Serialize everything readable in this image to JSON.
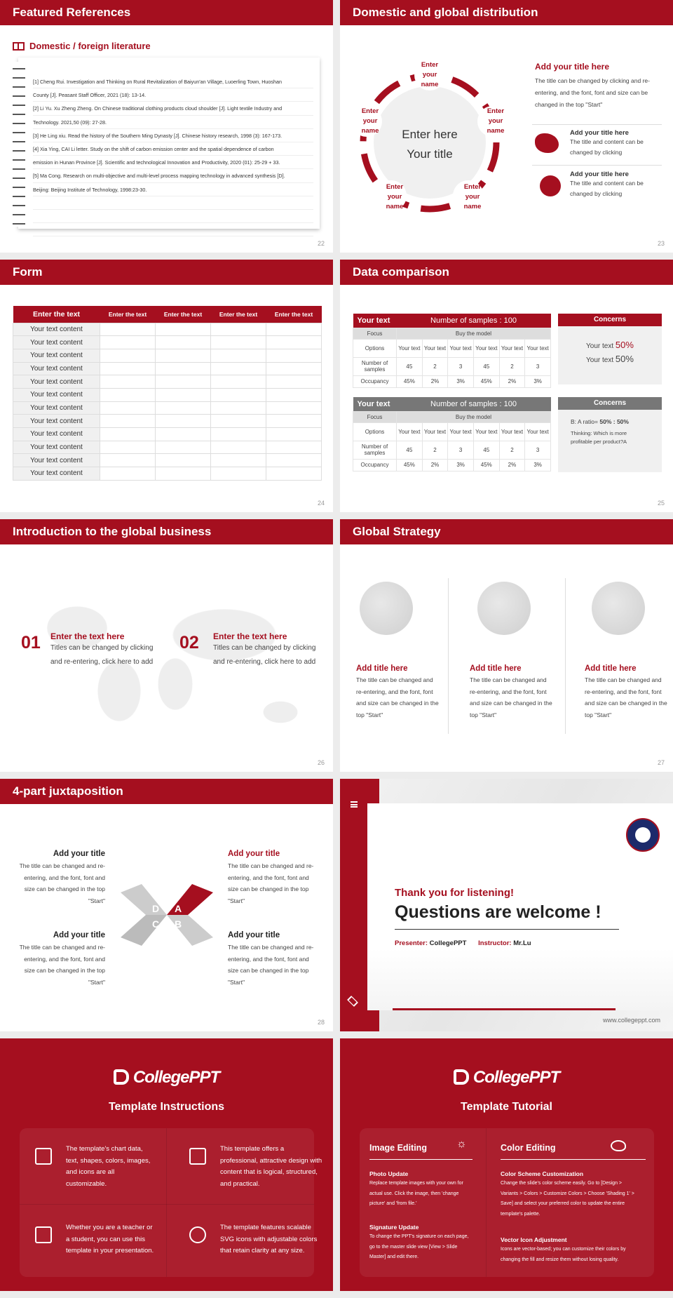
{
  "colors": {
    "accent": "#a50f1f",
    "gray": "#777777"
  },
  "s22": {
    "title": "Featured References",
    "heading": "Domestic / foreign literature",
    "icon": "book-icon",
    "page": "22",
    "lines": [
      "[1] Cheng Rui. Investigation and Thinking on Rural Revitalization of Baiyun'an Village, Luoerling Town, Huoshan",
      "County [J]. Peasant Staff Officer, 2021 (18): 13-14.",
      "[2] Li Yu. Xu Zheng Zheng. On Chinese traditional clothing products cloud shoulder [J]. Light textile Industry and",
      "Technology. 2021,50 (09): 27-28.",
      "[3] He Ling xiu. Read the history of the Southern Ming Dynasty [J]. Chinese history research, 1998 (3): 167-173.",
      "[4] Xia Ying, CAI Li letter. Study on the shift of carbon emission center and the spatial dependence of carbon",
      "emission in Hunan Province [J]. Scientific and technological Innovation and Productivity, 2020 (01): 25-29 + 33.",
      "[5] Ma Cong. Research on multi-objective and multi-level process mapping technology in advanced synthesis [D].",
      "Beijing: Beijing Institute of Technology, 1998:23-30."
    ]
  },
  "s23": {
    "title": "Domestic and global distribution",
    "page": "23",
    "center1": "Enter here",
    "center2": "Your title",
    "node": [
      "Enter",
      "your",
      "name"
    ],
    "main_title": "Add your title here",
    "main_text": "The title can be changed by clicking and re-entering, and the font, font and size can be changed in the top \"Start\"",
    "items": [
      {
        "icon": "china-map-icon",
        "title": "Add your title here",
        "text": "The title and content can be changed by clicking"
      },
      {
        "icon": "globe-icon",
        "title": "Add your title here",
        "text": "The title and content can be changed by clicking"
      }
    ]
  },
  "s24": {
    "title": "Form",
    "page": "24",
    "headers": [
      "Enter the text",
      "Enter the text",
      "Enter the text",
      "Enter the text",
      "Enter the text"
    ],
    "row_label": "Your text content"
  },
  "s25": {
    "title": "Data comparison",
    "page": "25",
    "head_left": "Your text",
    "head_right": "Number of samples : 100",
    "focus": "Focus",
    "buy": "Buy the model",
    "rows": [
      {
        "label": "Options",
        "cells": [
          "Your text",
          "Your text",
          "Your text",
          "Your text",
          "Your text",
          "Your text"
        ]
      },
      {
        "label": "Number of samples",
        "cells": [
          "45",
          "2",
          "3",
          "45",
          "2",
          "3"
        ]
      },
      {
        "label": "Occupancy",
        "cells": [
          "45%",
          "2%",
          "3%",
          "45%",
          "2%",
          "3%"
        ]
      }
    ],
    "concerns": "Concerns",
    "c1_a": "Your text",
    "c1_a_val": "50%",
    "c1_b": "Your text",
    "c1_b_val": "50%",
    "c2_ratio": "B: A ratio=",
    "c2_ratio_val": "50% : 50%",
    "c2_thinking": "Thinking: Which is more profitable per product?A"
  },
  "s26": {
    "title": "Introduction to the global business",
    "page": "26",
    "items": [
      {
        "num": "01",
        "title": "Enter the text here",
        "text": "Titles can be changed by clicking and re-entering, click here to add"
      },
      {
        "num": "02",
        "title": "Enter the text here",
        "text": "Titles can be changed by clicking and re-entering, click here to add"
      }
    ]
  },
  "s27": {
    "title": "Global Strategy",
    "page": "27",
    "cols": [
      {
        "title": "Add title here",
        "text": "The title can be changed and re-entering, and the font, font and size can be changed in the top \"Start\""
      },
      {
        "title": "Add title here",
        "text": "The title can be changed and re-entering, and the font, font and size can be changed in the top \"Start\""
      },
      {
        "title": "Add title here",
        "text": "The title can be changed and re-entering, and the font, font and size can be changed in the top \"Start\""
      }
    ]
  },
  "s28": {
    "title": "4-part juxtaposition",
    "page": "28",
    "letters": [
      "A",
      "B",
      "C",
      "D"
    ],
    "item_title": "Add your title",
    "item_text": "The title can be changed and re-entering, and the font, font and size can be changed in the top \"Start\""
  },
  "s29": {
    "thanks": "Thank you for listening!",
    "questions": "Questions are welcome !",
    "presenter_label": "Presenter:",
    "presenter": "CollegePPT",
    "instructor_label": "Instructor:",
    "instructor": "Mr.Lu",
    "url": "www.collegeppt.com",
    "logo_text": "RAYAT-BAHRA UNIVERSITY"
  },
  "s30": {
    "brand": "CollegePPT",
    "title": "Template Instructions",
    "items": [
      "The template's chart data, text, shapes, colors, images, and icons are all customizable.",
      "This template offers a professional, attractive design with content that is logical, structured, and practical.",
      "Whether you are a teacher or a student, you can use this template in your presentation.",
      "The template features scalable SVG icons with adjustable colors that retain clarity at any size."
    ]
  },
  "s31": {
    "brand": "CollegePPT",
    "title": "Template Tutorial",
    "left_head": "Image Editing",
    "right_head": "Color Editing",
    "left": [
      {
        "title": "Photo Update",
        "text": "Replace template images with your own for actual use. Click the image, then 'change picture' and 'from file.'"
      },
      {
        "title": "Signature Update",
        "text": "To change the PPT's signature on each page, go to the master slide view [View > Slide Master] and edit there."
      }
    ],
    "right": [
      {
        "title": "Color Scheme Customization",
        "text": "Change the slide's color scheme easily. Go to [Design > Variants > Colors > Customize Colors > Choose 'Shading 1' > Save] and select your preferred color to update the entire template's palette."
      },
      {
        "title": "Vector Icon Adjustment",
        "text": "Icons are vector-based; you can customize their colors by changing the fill and resize them without losing quality."
      }
    ]
  }
}
